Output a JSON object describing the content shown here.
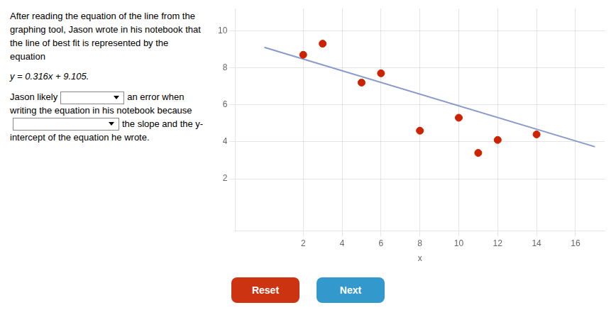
{
  "chart_data": {
    "type": "scatter",
    "x_label": "x",
    "series": [
      {
        "type": "scatter",
        "color": "#cc2200",
        "marker": "circle",
        "x": [
          2,
          3,
          5,
          6,
          8,
          10,
          11,
          12,
          14
        ],
        "values": [
          8.7,
          9.3,
          7.2,
          7.7,
          4.6,
          5.3,
          3.4,
          4.1,
          4.4
        ]
      },
      {
        "type": "line",
        "color": "#8899cc",
        "line_style": "solid",
        "x": [
          0,
          17
        ],
        "values": [
          9.105,
          3.733
        ]
      }
    ],
    "xlim": [
      -1.5,
      17.5
    ],
    "ylim": [
      -0.8,
      11.2
    ],
    "xticks": [
      2,
      4,
      6,
      8,
      10,
      12,
      14,
      16
    ],
    "yticks": [
      2,
      4,
      6,
      8,
      10
    ],
    "grid": true,
    "annotations": [
      "After reading the equation of the line from the graphing tool, Jason wrote in his notebook that the line of best fit is represented by the equation",
      "y = 0.316x + 9.105.",
      "Jason likely",
      "an error when writing the equation in his notebook because",
      "the",
      "slope and the y-intercept of the equation he wrote."
    ],
    "buttons": [
      {
        "label": "Reset",
        "color": "#cc3311"
      },
      {
        "label": "Next",
        "color": "#3399cc"
      }
    ]
  }
}
